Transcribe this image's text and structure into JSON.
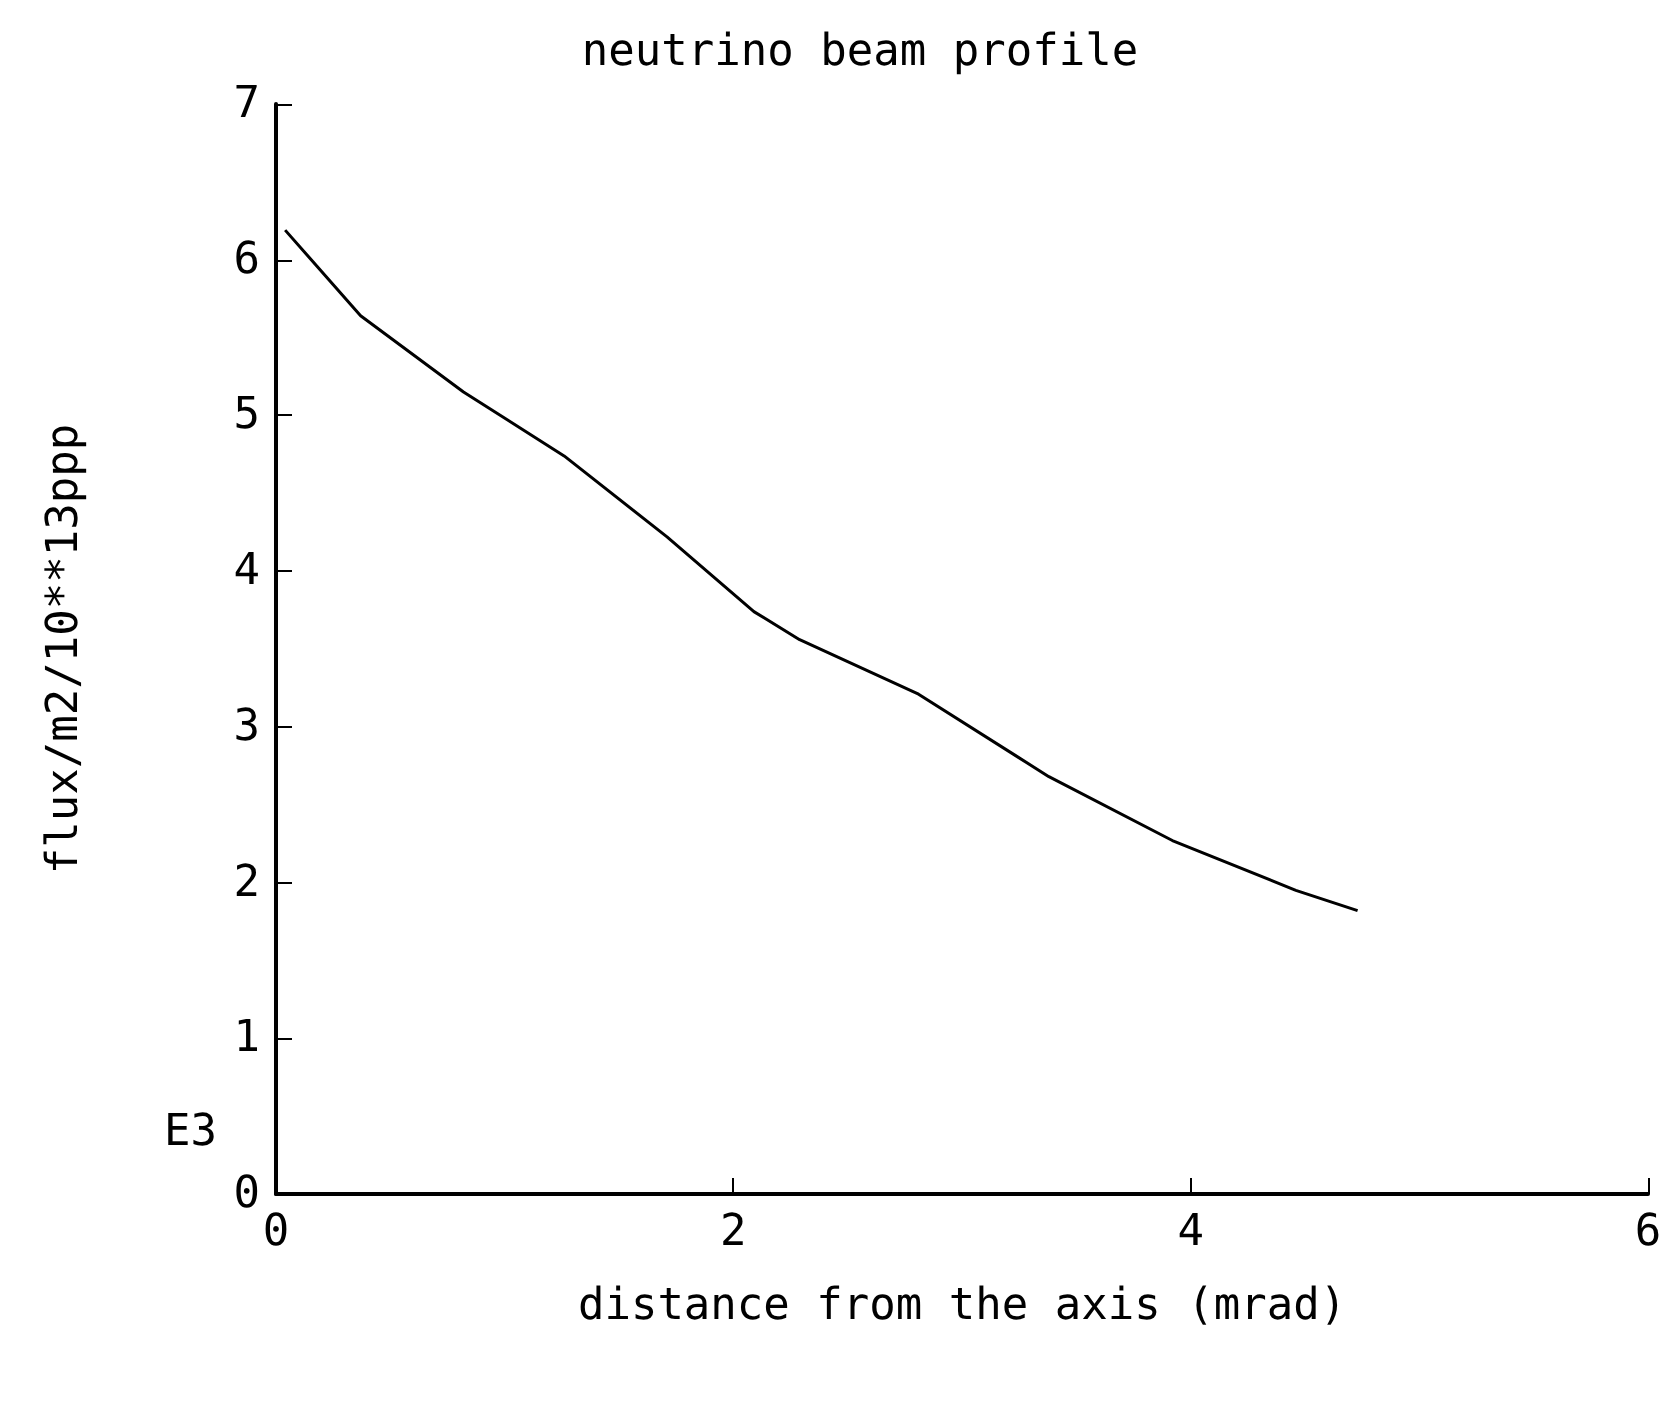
{
  "chart_data": {
    "type": "line",
    "title": "neutrino beam profile",
    "xlabel": "distance from the axis (mrad)",
    "ylabel": "flux/m2/10**13ppp",
    "annotations": [
      "E3"
    ],
    "x": [
      0.04,
      0.37,
      0.82,
      1.26,
      1.71,
      2.09,
      2.29,
      2.81,
      3.38,
      3.92,
      4.46,
      4.73
    ],
    "series": [
      {
        "color": "#000000",
        "values": [
          6.19,
          5.64,
          5.15,
          4.74,
          4.22,
          3.74,
          3.56,
          3.21,
          2.68,
          2.27,
          1.95,
          1.82
        ]
      }
    ],
    "xlim": [
      0,
      6
    ],
    "xticks": [
      0,
      2,
      4,
      6
    ],
    "ylim": [
      0,
      7
    ],
    "yticks": [
      0,
      1,
      2,
      3,
      4,
      5,
      6,
      7
    ],
    "grid": false,
    "marker": "none",
    "line_style": "solid"
  }
}
